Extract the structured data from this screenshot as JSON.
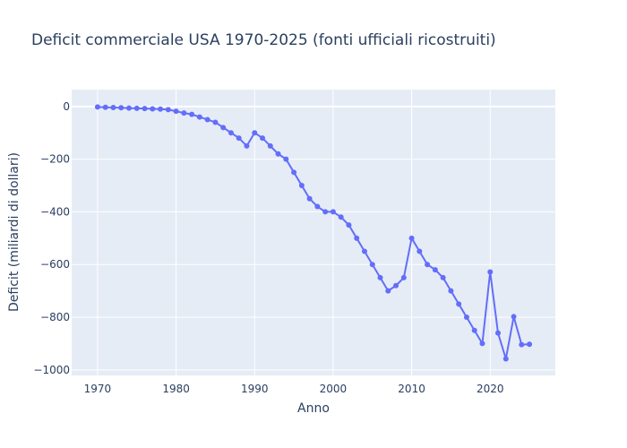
{
  "chart_data": {
    "type": "line",
    "title": "Deficit commerciale USA 1970-2025 (fonti ufficiali ricostruiti)",
    "xlabel": "Anno",
    "ylabel": "Deficit (miliardi di dollari)",
    "xlim": [
      1966.7,
      2028.3
    ],
    "ylim": [
      -1021,
      64
    ],
    "x_ticks": [
      1970,
      1980,
      1990,
      2000,
      2010,
      2020
    ],
    "y_ticks": [
      0,
      -200,
      -400,
      -600,
      -800,
      -1000
    ],
    "y_tick_labels": [
      "0",
      "−200",
      "−400",
      "−600",
      "−800",
      "−1000"
    ],
    "grid": true,
    "colors": {
      "line": "#636efa",
      "plot_bg": "#e5ecf6",
      "grid": "#ffffff",
      "text": "#2a3f5f"
    },
    "series": [
      {
        "x": [
          1970,
          1971,
          1972,
          1973,
          1974,
          1975,
          1976,
          1977,
          1978,
          1979,
          1980,
          1981,
          1982,
          1983,
          1984,
          1985,
          1986,
          1987,
          1988,
          1989,
          1990,
          1991,
          1992,
          1993,
          1994,
          1995,
          1996,
          1997,
          1998,
          1999,
          2000,
          2001,
          2002,
          2003,
          2004,
          2005,
          2006,
          2007,
          2008,
          2009,
          2010,
          2011,
          2012,
          2013,
          2014,
          2015,
          2016,
          2017,
          2018,
          2019,
          2020,
          2021,
          2022,
          2023,
          2024,
          2025
        ],
        "y": [
          -2,
          -3,
          -4,
          -5,
          -6,
          -7,
          -8,
          -9,
          -10,
          -12,
          -18,
          -25,
          -30,
          -40,
          -50,
          -60,
          -80,
          -100,
          -120,
          -150,
          -100,
          -120,
          -150,
          -180,
          -200,
          -250,
          -300,
          -350,
          -380,
          -400,
          -400,
          -420,
          -450,
          -500,
          -550,
          -600,
          -650,
          -700,
          -680,
          -650,
          -500,
          -550,
          -600,
          -620,
          -650,
          -700,
          -750,
          -800,
          -850,
          -900,
          -628,
          -860,
          -958,
          -798,
          -904,
          -903
        ]
      }
    ]
  }
}
